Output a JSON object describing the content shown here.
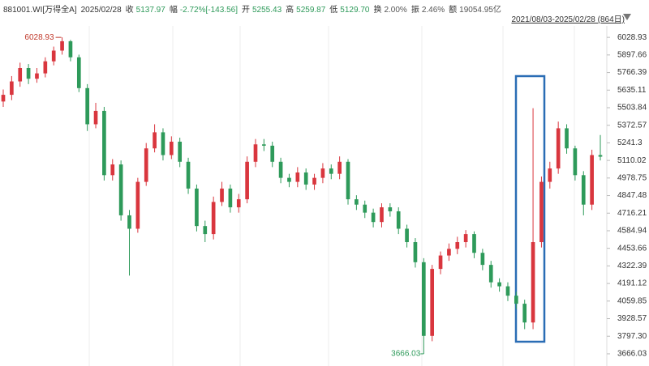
{
  "header": {
    "code": "881001.WI[万得全A]",
    "date": "2025/02/28",
    "fields": [
      {
        "label": "收",
        "value": "5137.97",
        "color": "#2e9a5a"
      },
      {
        "label": "幅",
        "value": "-2.72%[-143.56]",
        "color": "#2e9a5a"
      },
      {
        "label": "开",
        "value": "5255.43",
        "color": "#2e9a5a"
      },
      {
        "label": "高",
        "value": "5259.87",
        "color": "#2e9a5a"
      },
      {
        "label": "低",
        "value": "5129.70",
        "color": "#2e9a5a"
      },
      {
        "label": "换",
        "value": "2.00%",
        "color": "#555555"
      },
      {
        "label": "振",
        "value": "2.46%",
        "color": "#555555"
      },
      {
        "label": "额",
        "value": "19054.95亿",
        "color": "#555555"
      }
    ],
    "range": "2021/08/03-2025/02/28 (864日)"
  },
  "chart_data": {
    "type": "candlestick",
    "up_color": "#d9363e",
    "down_color": "#2e9a5a",
    "ylim": [
      3575,
      6187
    ],
    "yticks": [
      6028.93,
      5897.66,
      5766.39,
      5635.11,
      5503.84,
      5372.57,
      5241.3,
      {
        "value": 5110.02,
        "label": "5110.02"
      },
      4978.75,
      4847.48,
      4716.21,
      4584.94,
      4453.66,
      4322.39,
      4191.12,
      4059.85,
      3928.57,
      {
        "value": 3797.3,
        "label": "3797.30"
      },
      3666.03
    ],
    "max_marker": 6028.93,
    "min_marker": 3666.03,
    "open": [
      5550,
      5600,
      5700,
      5800,
      5720,
      5760,
      5850,
      5930,
      6000,
      5880,
      5650,
      5380,
      5480,
      5000,
      5080,
      4700,
      4600,
      4950,
      5200,
      5320,
      5150,
      5250,
      5100,
      4900,
      4620,
      4560,
      4800,
      4900,
      4760,
      4820,
      5100,
      5230,
      5220,
      5100,
      4980,
      4950,
      5020,
      4930,
      4980,
      5050,
      5010,
      5100,
      4820,
      4780,
      4720,
      4650,
      4760,
      4730,
      4600,
      4500,
      4350,
      3800,
      4300,
      4400,
      4450,
      4500,
      4560,
      4420,
      4330,
      4200,
      4170,
      4100,
      4040,
      3900,
      4500,
      4950,
      5050,
      5350,
      5200,
      5000,
      4780,
      5150
    ],
    "high": [
      5640,
      5740,
      5840,
      5830,
      5800,
      5880,
      5960,
      6028.93,
      6010,
      5900,
      5680,
      5540,
      5510,
      5120,
      5110,
      4740,
      4980,
      5240,
      5380,
      5350,
      5290,
      5280,
      5130,
      4930,
      4660,
      4840,
      4950,
      4930,
      4860,
      5140,
      5270,
      5270,
      5250,
      5130,
      5010,
      5060,
      5050,
      5010,
      5090,
      5080,
      5140,
      5120,
      4850,
      4810,
      4750,
      4790,
      4790,
      4760,
      4630,
      4530,
      4380,
      4330,
      4430,
      4490,
      4540,
      4590,
      4580,
      4450,
      4360,
      4230,
      4200,
      4130,
      4070,
      5500,
      4990,
      5100,
      5400,
      5380,
      5220,
      5030,
      5190,
      5300
    ],
    "low": [
      5510,
      5560,
      5660,
      5680,
      5690,
      5730,
      5820,
      5900,
      5850,
      5620,
      5330,
      5350,
      4960,
      4960,
      4660,
      4250,
      4570,
      4920,
      5170,
      5110,
      5120,
      5060,
      4860,
      4580,
      4500,
      4520,
      4770,
      4720,
      4720,
      4790,
      5060,
      5180,
      5060,
      4940,
      4910,
      4910,
      4890,
      4890,
      4940,
      4970,
      4970,
      4780,
      4740,
      4680,
      4610,
      4610,
      4690,
      4560,
      4460,
      4310,
      3666.03,
      3760,
      4260,
      4360,
      4410,
      4460,
      4380,
      4290,
      4160,
      4130,
      4060,
      4000,
      3850,
      3850,
      4460,
      4900,
      5010,
      5160,
      4960,
      4700,
      4740,
      5110
    ],
    "close": [
      5600,
      5700,
      5800,
      5720,
      5760,
      5850,
      5930,
      6000,
      5880,
      5650,
      5380,
      5480,
      5000,
      5080,
      4700,
      4600,
      4950,
      5200,
      5320,
      5150,
      5250,
      5100,
      4900,
      4620,
      4560,
      4800,
      4900,
      4760,
      4820,
      5100,
      5230,
      5220,
      5100,
      4980,
      4950,
      5020,
      4930,
      4980,
      5050,
      5010,
      5100,
      4820,
      4780,
      4720,
      4650,
      4760,
      4730,
      4600,
      4500,
      4350,
      3800,
      4300,
      4400,
      4450,
      4500,
      4560,
      4420,
      4330,
      4200,
      4170,
      4100,
      4040,
      3900,
      4500,
      4950,
      5050,
      5350,
      5200,
      5000,
      4780,
      5150,
      5138
    ]
  }
}
